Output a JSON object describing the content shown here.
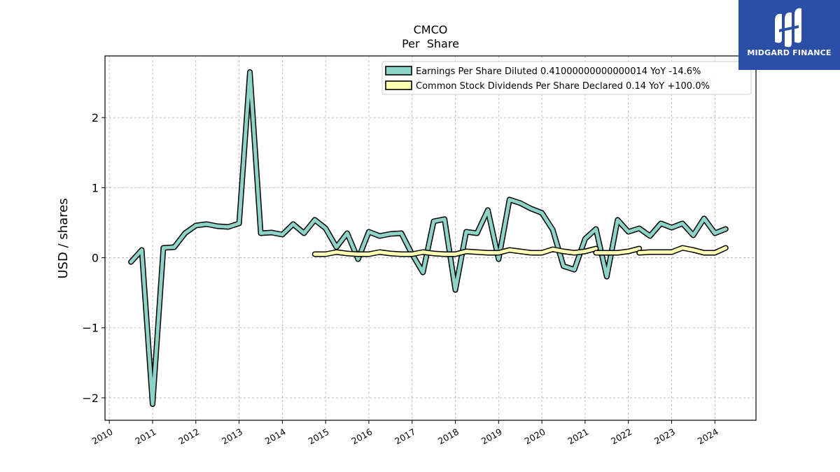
{
  "brand": {
    "name": "MIDGARD FINANCE",
    "bg_color": "#2b4fa6"
  },
  "chart_data": {
    "type": "line",
    "title": "CMCO",
    "subtitle": "Per  Share",
    "ylabel": "USD / shares",
    "xlabel": "",
    "xlim": [
      2009.9,
      2024.95
    ],
    "ylim": [
      -2.32,
      2.88
    ],
    "yticks": [
      -2,
      -1,
      0,
      1,
      2
    ],
    "ytick_labels": [
      "−2",
      "−1",
      "0",
      "1",
      "2"
    ],
    "xticks": [
      2010,
      2011,
      2012,
      2013,
      2014,
      2015,
      2016,
      2017,
      2018,
      2019,
      2020,
      2021,
      2022,
      2023,
      2024
    ],
    "xtick_labels": [
      "2010",
      "2011",
      "2012",
      "2013",
      "2014",
      "2015",
      "2016",
      "2017",
      "2018",
      "2019",
      "2020",
      "2021",
      "2022",
      "2023",
      "2024"
    ],
    "grid": true,
    "legend_position": "top-right",
    "series": [
      {
        "name": "Earnings Per Share Diluted  0.41000000000000014 YoY -14.6%",
        "color": "#8dd3c7",
        "points": [
          [
            2010.5,
            -0.06
          ],
          [
            2010.75,
            0.11
          ],
          [
            2011.0,
            -2.09
          ],
          [
            2011.25,
            0.14
          ],
          [
            2011.5,
            0.15
          ],
          [
            2011.75,
            0.35
          ],
          [
            2012.0,
            0.46
          ],
          [
            2012.25,
            0.48
          ],
          [
            2012.5,
            0.45
          ],
          [
            2012.75,
            0.44
          ],
          [
            2013.0,
            0.49
          ],
          [
            2013.25,
            2.65
          ],
          [
            2013.5,
            0.35
          ],
          [
            2013.75,
            0.36
          ],
          [
            2014.0,
            0.33
          ],
          [
            2014.25,
            0.48
          ],
          [
            2014.5,
            0.35
          ],
          [
            2014.75,
            0.54
          ],
          [
            2015.0,
            0.42
          ],
          [
            2015.25,
            0.15
          ],
          [
            2015.5,
            0.35
          ],
          [
            2015.75,
            -0.02
          ],
          [
            2016.0,
            0.37
          ],
          [
            2016.25,
            0.31
          ],
          [
            2016.5,
            0.34
          ],
          [
            2016.75,
            0.35
          ],
          [
            2017.0,
            0.05
          ],
          [
            2017.25,
            -0.21
          ],
          [
            2017.5,
            0.52
          ],
          [
            2017.75,
            0.55
          ],
          [
            2018.0,
            -0.46
          ],
          [
            2018.25,
            0.37
          ],
          [
            2018.5,
            0.35
          ],
          [
            2018.75,
            0.68
          ],
          [
            2019.0,
            -0.02
          ],
          [
            2019.25,
            0.83
          ],
          [
            2019.5,
            0.78
          ],
          [
            2019.75,
            0.7
          ],
          [
            2020.0,
            0.64
          ],
          [
            2020.25,
            0.4
          ],
          [
            2020.5,
            -0.12
          ],
          [
            2020.75,
            -0.17
          ],
          [
            2021.0,
            0.27
          ],
          [
            2021.25,
            0.41
          ],
          [
            2021.5,
            -0.27
          ],
          [
            2021.75,
            0.54
          ],
          [
            2022.0,
            0.37
          ],
          [
            2022.25,
            0.42
          ],
          [
            2022.5,
            0.31
          ],
          [
            2022.75,
            0.49
          ],
          [
            2023.0,
            0.43
          ],
          [
            2023.25,
            0.49
          ],
          [
            2023.5,
            0.32
          ],
          [
            2023.75,
            0.56
          ],
          [
            2024.0,
            0.35
          ],
          [
            2024.25,
            0.41
          ]
        ]
      },
      {
        "name": "Common Stock Dividends Per Share Declared  0.14 YoY +100.0%",
        "color": "#ffffb3",
        "segments": [
          [
            [
              2014.75,
              0.05
            ],
            [
              2015.0,
              0.05
            ],
            [
              2015.25,
              0.08
            ],
            [
              2015.5,
              0.06
            ],
            [
              2015.75,
              0.05
            ],
            [
              2016.0,
              0.05
            ],
            [
              2016.25,
              0.08
            ],
            [
              2016.5,
              0.06
            ],
            [
              2016.75,
              0.05
            ],
            [
              2017.0,
              0.05
            ],
            [
              2017.25,
              0.08
            ],
            [
              2017.5,
              0.06
            ],
            [
              2017.75,
              0.05
            ],
            [
              2018.0,
              0.05
            ],
            [
              2018.25,
              0.09
            ],
            [
              2018.5,
              0.08
            ],
            [
              2018.75,
              0.07
            ],
            [
              2019.0,
              0.07
            ],
            [
              2019.25,
              0.11
            ],
            [
              2019.5,
              0.09
            ],
            [
              2019.75,
              0.07
            ],
            [
              2020.0,
              0.07
            ],
            [
              2020.25,
              0.12
            ],
            [
              2020.5,
              0.09
            ],
            [
              2020.75,
              0.07
            ],
            [
              2021.0,
              0.09
            ],
            [
              2021.25,
              0.13
            ]
          ],
          [
            [
              2021.25,
              0.07
            ],
            [
              2021.5,
              0.07
            ],
            [
              2021.75,
              0.07
            ],
            [
              2022.0,
              0.09
            ],
            [
              2022.25,
              0.13
            ]
          ],
          [
            [
              2022.25,
              0.07
            ],
            [
              2022.5,
              0.08
            ],
            [
              2022.75,
              0.08
            ],
            [
              2023.0,
              0.08
            ],
            [
              2023.25,
              0.14
            ],
            [
              2023.5,
              0.11
            ],
            [
              2023.75,
              0.07
            ],
            [
              2024.0,
              0.07
            ],
            [
              2024.25,
              0.14
            ]
          ]
        ]
      }
    ]
  }
}
